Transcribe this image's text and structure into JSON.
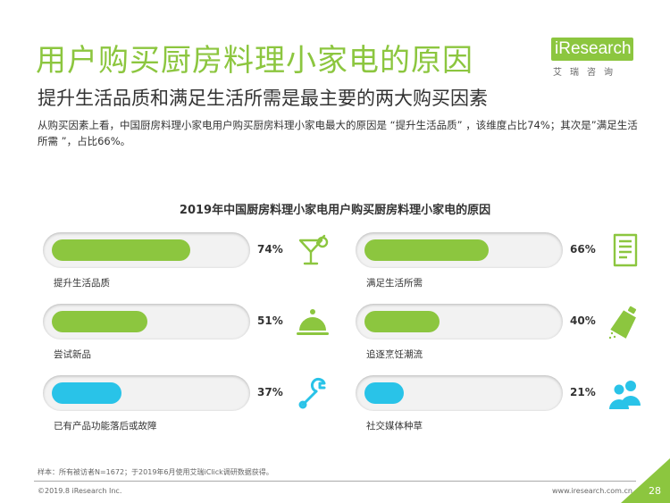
{
  "header": {
    "title": "用户购买厨房料理小家电的原因",
    "subtitle": "提升生活品质和满足生活所需是最主要的两大购买因素",
    "description": "从购买因素上看，中国厨房料理小家电用户购买厨房料理小家电最大的原因是 “提升生活品质” ，该维度占比74%；其次是”满足生活所需 ”，占比66%。"
  },
  "logo": {
    "name": "iResearch",
    "sub": "艾瑞咨询"
  },
  "colors": {
    "green": "#8cc63f",
    "cyan": "#29c3e8"
  },
  "chart_data": {
    "type": "bar",
    "title": "2019年中国厨房料理小家电用户购买厨房料理小家电的原因",
    "categories": [
      "提升生活品质",
      "满足生活所需",
      "尝试新品",
      "追逐烹饪潮流",
      "已有产品功能落后或故障",
      "社交媒体种草"
    ],
    "values": [
      74,
      66,
      51,
      40,
      37,
      21
    ],
    "value_labels": [
      "74%",
      "66%",
      "51%",
      "40%",
      "37%",
      "21%"
    ],
    "unit": "%",
    "ylim": [
      0,
      100
    ],
    "items": [
      {
        "label": "提升生活品质",
        "value": 74,
        "value_label": "74%",
        "color": "#8cc63f",
        "icon": "cocktail-icon"
      },
      {
        "label": "满足生活所需",
        "value": 66,
        "value_label": "66%",
        "color": "#8cc63f",
        "icon": "document-icon"
      },
      {
        "label": "尝试新品",
        "value": 51,
        "value_label": "51%",
        "color": "#8cc63f",
        "icon": "cloche-icon"
      },
      {
        "label": "追逐烹饪潮流",
        "value": 40,
        "value_label": "40%",
        "color": "#8cc63f",
        "icon": "spray-bottle-icon"
      },
      {
        "label": "已有产品功能落后或故障",
        "value": 37,
        "value_label": "37%",
        "color": "#29c3e8",
        "icon": "wrench-icon"
      },
      {
        "label": "社交媒体种草",
        "value": 21,
        "value_label": "21%",
        "color": "#29c3e8",
        "icon": "users-icon"
      }
    ]
  },
  "footer": {
    "note": "样本：所有被访者N=1672；于2019年6月使用艾瑞iClick调研数据获得。",
    "copyright": "©2019.8 iResearch Inc.",
    "website": "www.iresearch.com.cn",
    "page": "28"
  }
}
